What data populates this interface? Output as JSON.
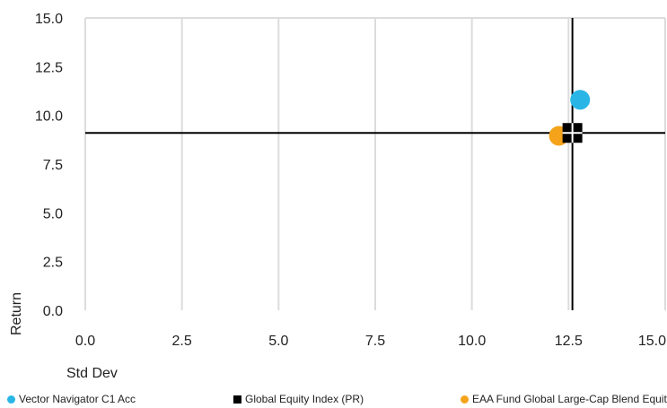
{
  "chart_data": {
    "type": "scatter",
    "xlabel": "Std Dev",
    "ylabel": "Return",
    "xlim": [
      0,
      15
    ],
    "ylim": [
      0,
      15
    ],
    "x_ticks": [
      "0.0",
      "2.5",
      "5.0",
      "7.5",
      "10.0",
      "12.5",
      "15.0"
    ],
    "y_ticks": [
      "0.0",
      "2.5",
      "5.0",
      "7.5",
      "10.0",
      "12.5",
      "15.0"
    ],
    "grid": true,
    "legend_position": "bottom",
    "series": [
      {
        "name": "Vector Navigator C1 Acc",
        "marker": "circle",
        "color": "#29b6e6",
        "x": 12.8,
        "y": 10.8
      },
      {
        "name": "EAA Fund Global Large-Cap Blend Equity",
        "marker": "circle",
        "color": "#f5a31a",
        "x": 12.25,
        "y": 8.95
      },
      {
        "name": "Global Equity Index (PR)",
        "marker": "square",
        "color": "#000000",
        "x": 12.6,
        "y": 9.1
      }
    ],
    "crosshair": {
      "x": 12.6,
      "y": 9.1,
      "color": "#000000"
    }
  },
  "legend": [
    {
      "label": "Vector Navigator C1 Acc",
      "color": "#29b6e6",
      "shape": "circle"
    },
    {
      "label": "Global Equity Index (PR)",
      "color": "#000000",
      "shape": "square"
    },
    {
      "label": "EAA Fund Global Large-Cap Blend Equity",
      "color": "#f5a31a",
      "shape": "circle"
    }
  ]
}
